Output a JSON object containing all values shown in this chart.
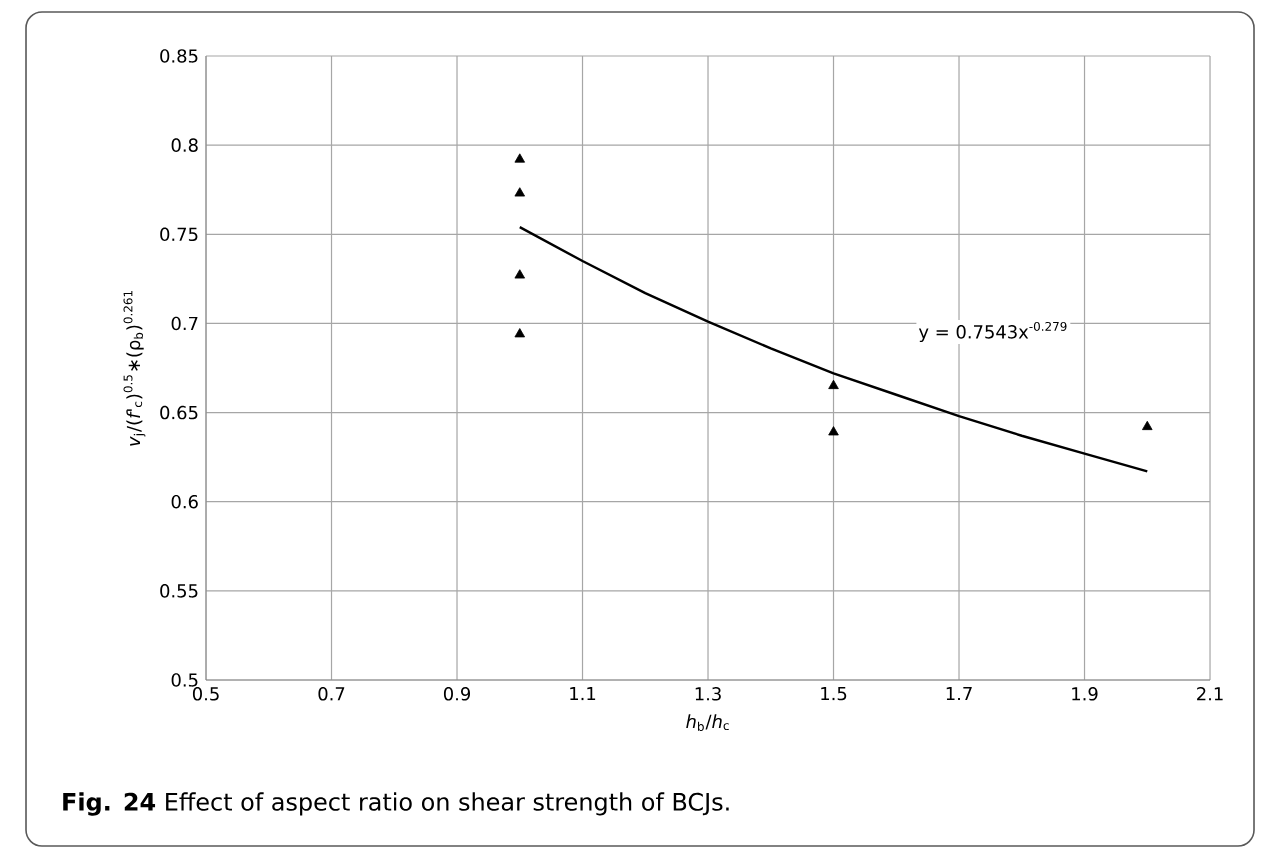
{
  "chart_data": {
    "type": "scatter",
    "xlabel": "*h*$_{b}$/*h*$_{c}$",
    "ylabel": "*v*$_{j}$/(*f'*$_{c}$)$^{0.5}$∗(ρ$_{b}$)$^{0.261}$",
    "series": [
      {
        "color": "#000000",
        "marker": "triangle",
        "x": [
          1,
          1,
          1,
          1,
          1.5,
          1.5,
          2
        ],
        "values": [
          0.792,
          0.773,
          0.727,
          0.694,
          0.665,
          0.639,
          0.642
        ]
      },
      {
        "type": "line",
        "color": "#000000",
        "marker": "none",
        "line_style": "solid",
        "x": [
          1,
          1.1,
          1.2,
          1.3,
          1.4,
          1.5,
          1.6,
          1.7,
          1.8,
          1.9,
          2
        ],
        "values": [
          0.754,
          0.735,
          0.717,
          0.701,
          0.686,
          0.672,
          0.66,
          0.648,
          0.637,
          0.627,
          0.617
        ]
      }
    ],
    "xlim": [
      0.5,
      2.1
    ],
    "xticks": [
      0.5,
      0.7,
      0.9,
      1.1,
      1.3,
      1.5,
      1.7,
      1.9,
      2.1
    ],
    "ylim": [
      0.5,
      0.85
    ],
    "yticks": [
      0.5,
      0.55,
      0.6,
      0.65,
      0.7,
      0.75,
      0.8,
      0.85
    ],
    "grid": true,
    "annotations": [
      "y = 0.7543x$^{-0.279}$",
      "**Fig. 24** Effect of aspect ratio on shear strength of BCJs."
    ]
  }
}
